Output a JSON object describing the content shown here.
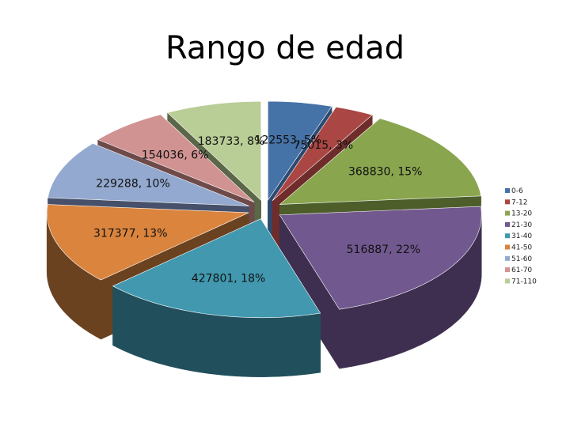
{
  "chart_data": {
    "type": "pie",
    "title": "Rango de edad",
    "exploded": true,
    "three_d": true,
    "legend_position": "right",
    "slices": [
      {
        "label": "0-6",
        "value": 122553,
        "percent_label": "5%",
        "color": "#4572a7",
        "side_color": "#2c4a70"
      },
      {
        "label": "7-12",
        "value": 75015,
        "percent_label": "3%",
        "color": "#aa4643",
        "side_color": "#6e2d2b"
      },
      {
        "label": "13-20",
        "value": 368830,
        "percent_label": "15%",
        "color": "#89a54e",
        "side_color": "#4d5e2b"
      },
      {
        "label": "21-30",
        "value": 516887,
        "percent_label": "22%",
        "color": "#71588f",
        "side_color": "#3e2f50"
      },
      {
        "label": "31-40",
        "value": 427801,
        "percent_label": "18%",
        "color": "#4198af",
        "side_color": "#214f5c"
      },
      {
        "label": "41-50",
        "value": 317377,
        "percent_label": "13%",
        "color": "#db843d",
        "side_color": "#6b4220"
      },
      {
        "label": "51-60",
        "value": 229288,
        "percent_label": "10%",
        "color": "#93a9cf",
        "side_color": "#46506a"
      },
      {
        "label": "61-70",
        "value": 154036,
        "percent_label": "6%",
        "color": "#d19392",
        "side_color": "#6e4a49"
      },
      {
        "label": "71-110",
        "value": 183733,
        "percent_label": "8%",
        "color": "#b9cd96",
        "side_color": "#5c6648"
      }
    ]
  }
}
